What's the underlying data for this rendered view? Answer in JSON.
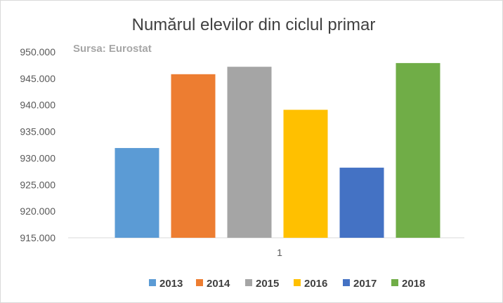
{
  "chart_data": {
    "type": "bar",
    "title": "Numărul elevilor din ciclul primar",
    "annotation": "Sursa: Eurostat",
    "categories": [
      "1"
    ],
    "ylim": [
      915000,
      950000
    ],
    "yticks": [
      915000,
      920000,
      925000,
      930000,
      935000,
      940000,
      945000,
      950000
    ],
    "ytick_labels": [
      "915.000",
      "920.000",
      "925.000",
      "930.000",
      "935.000",
      "940.000",
      "945.000",
      "950.000"
    ],
    "grid": false,
    "legend": "bottom",
    "series": [
      {
        "name": "2013",
        "values": [
          931900
        ],
        "color": "#5B9BD5"
      },
      {
        "name": "2014",
        "values": [
          945800
        ],
        "color": "#ED7D31"
      },
      {
        "name": "2015",
        "values": [
          947200
        ],
        "color": "#A5A5A5"
      },
      {
        "name": "2016",
        "values": [
          939100
        ],
        "color": "#FFC000"
      },
      {
        "name": "2017",
        "values": [
          928200
        ],
        "color": "#4472C4"
      },
      {
        "name": "2018",
        "values": [
          947900
        ],
        "color": "#70AD47"
      }
    ]
  }
}
